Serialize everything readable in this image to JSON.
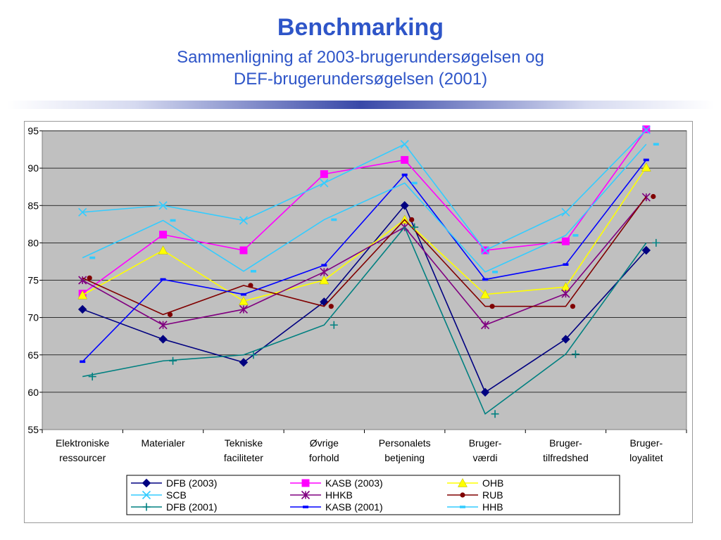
{
  "page": {
    "title": "Benchmarking",
    "subtitle_line1": "Sammenligning af 2003-brugerundersøgelsen og",
    "subtitle_line2": "DEF-brugerundersøgelsen (2001)"
  },
  "chart_data": {
    "type": "line",
    "categories": [
      [
        "Elektroniske",
        "ressourcer"
      ],
      [
        "Materialer"
      ],
      [
        "Tekniske",
        "faciliteter"
      ],
      [
        "Øvrige",
        "forhold"
      ],
      [
        "Personalets",
        "betjening"
      ],
      [
        "Bruger-",
        "værdi"
      ],
      [
        "Bruger-",
        "tilfredshed"
      ],
      [
        "Bruger-",
        "loyalitet"
      ]
    ],
    "ylim": [
      55,
      95
    ],
    "yticks": [
      "55",
      "60",
      "65",
      "70",
      "75",
      "80",
      "85",
      "90",
      "95"
    ],
    "plot_background": "#c0c0c0",
    "grid": true,
    "legend_position": "bottom",
    "series": [
      {
        "name": "DFB (2003)",
        "color": "#000080",
        "marker": "diamond",
        "values": [
          71.1,
          67.1,
          64.0,
          72.1,
          85.0,
          60.0,
          67.1,
          79.0
        ]
      },
      {
        "name": "KASB (2003)",
        "color": "#ff00ff",
        "marker": "square",
        "values": [
          73.2,
          81.1,
          79.0,
          89.2,
          91.1,
          79.0,
          80.2,
          95.2
        ]
      },
      {
        "name": "OHB",
        "color": "#ffff00",
        "marker": "triangle",
        "values": [
          73.0,
          79.0,
          72.2,
          75.0,
          83.1,
          73.1,
          74.1,
          90.1
        ]
      },
      {
        "name": "SCB",
        "color": "#33ccff",
        "marker": "x",
        "values": [
          84.1,
          85.0,
          83.0,
          88.0,
          93.2,
          79.0,
          84.1,
          95.1
        ]
      },
      {
        "name": "HHKB",
        "color": "#800080",
        "marker": "star",
        "values": [
          75.0,
          69.0,
          71.1,
          76.1,
          82.1,
          69.0,
          73.2,
          86.1
        ]
      },
      {
        "name": "RUB",
        "color": "#800000",
        "marker": "circle",
        "values": [
          75.3,
          70.4,
          74.3,
          71.5,
          83.1,
          71.5,
          71.5,
          86.2
        ]
      },
      {
        "name": "DFB (2001)",
        "color": "#008080",
        "marker": "plus",
        "values": [
          62.1,
          64.2,
          65.0,
          69.0,
          82.1,
          57.1,
          65.1,
          80.0
        ]
      },
      {
        "name": "KASB (2001)",
        "color": "#0000ff",
        "marker": "dash",
        "values": [
          64.1,
          75.1,
          73.1,
          77.0,
          89.1,
          75.1,
          77.1,
          91.1
        ]
      },
      {
        "name": "HHB",
        "color": "#33ccff",
        "marker": "dash",
        "values": [
          78.0,
          83.0,
          76.2,
          83.1,
          88.0,
          76.1,
          81.0,
          93.2
        ]
      }
    ]
  }
}
